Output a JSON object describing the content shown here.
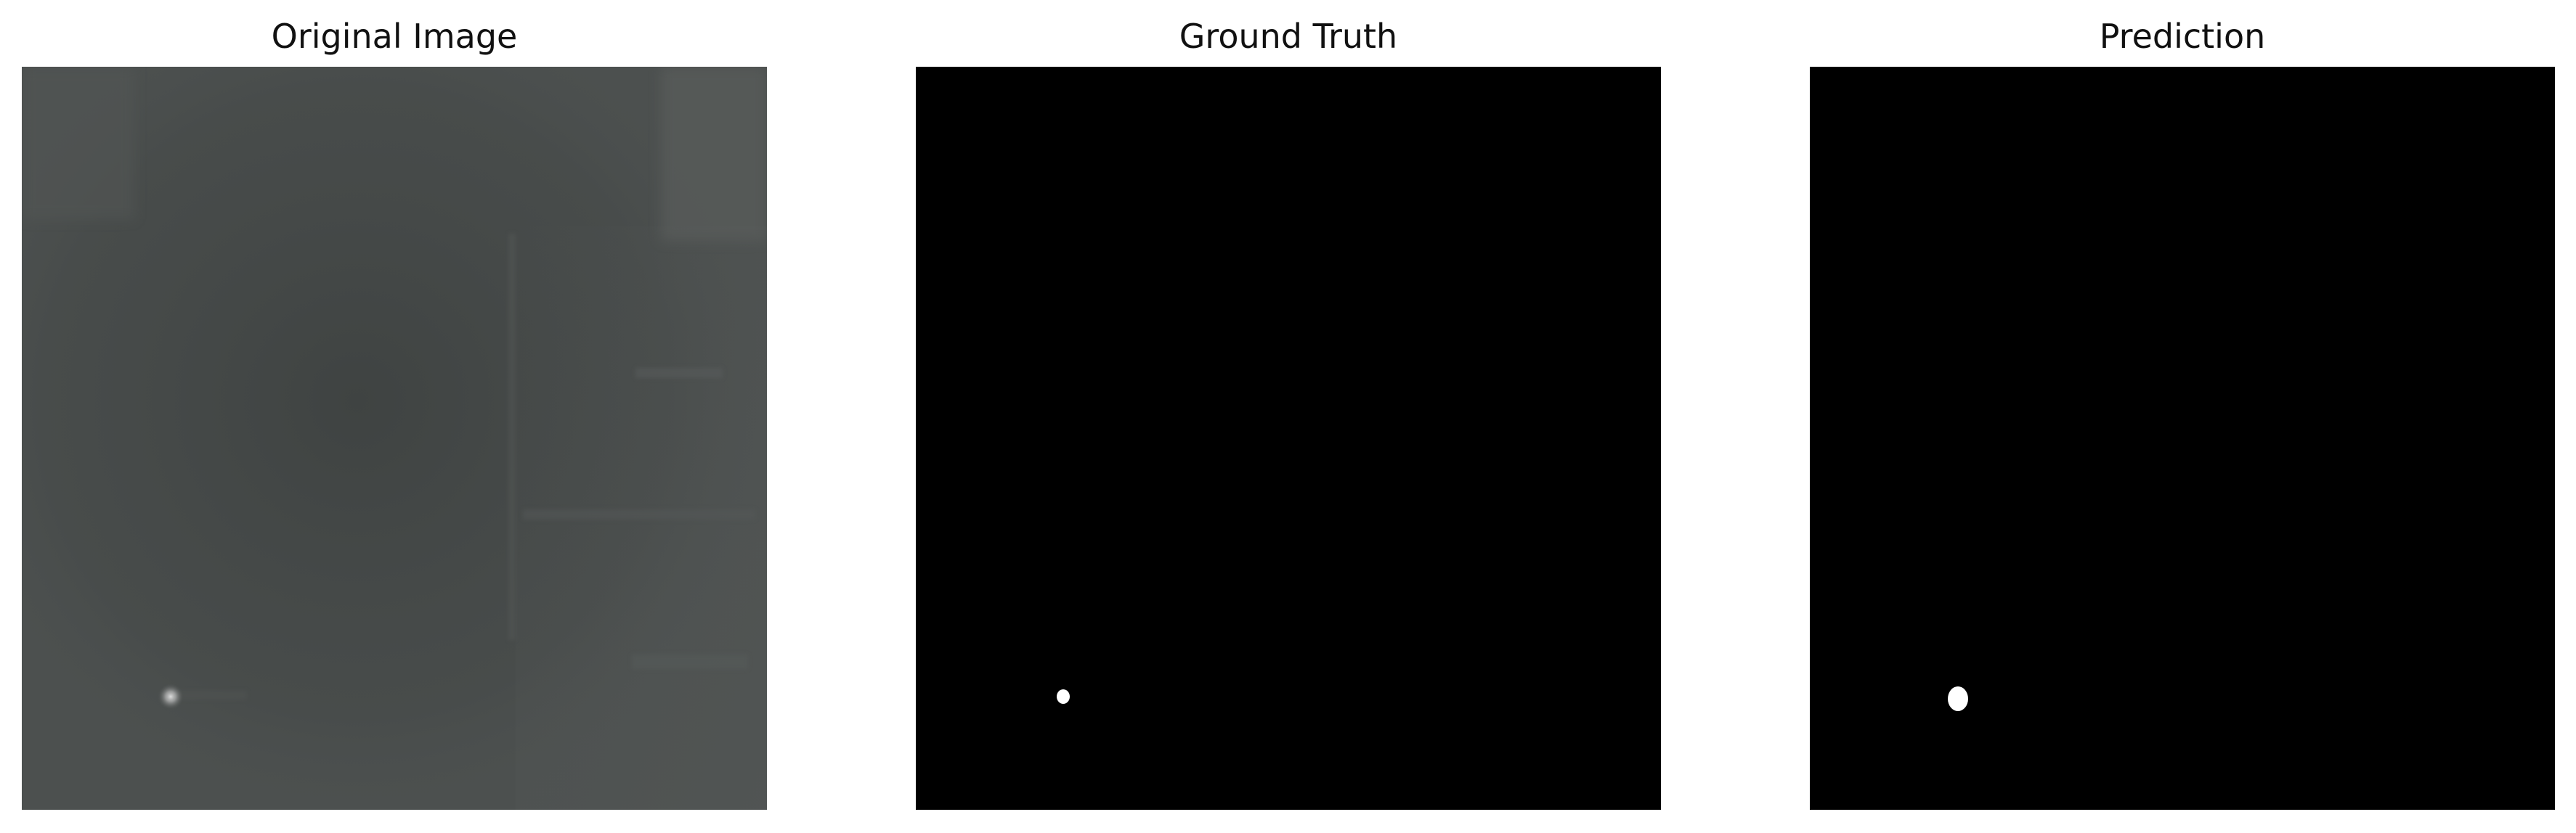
{
  "figure": {
    "panels": [
      {
        "id": "original",
        "title": "Original Image"
      },
      {
        "id": "ground_truth",
        "title": "Ground Truth"
      },
      {
        "id": "prediction",
        "title": "Prediction"
      }
    ]
  },
  "colors": {
    "background": "#ffffff",
    "original_base": "#4a4d4c",
    "mask_background": "#000000",
    "mask_foreground": "#ffffff"
  }
}
